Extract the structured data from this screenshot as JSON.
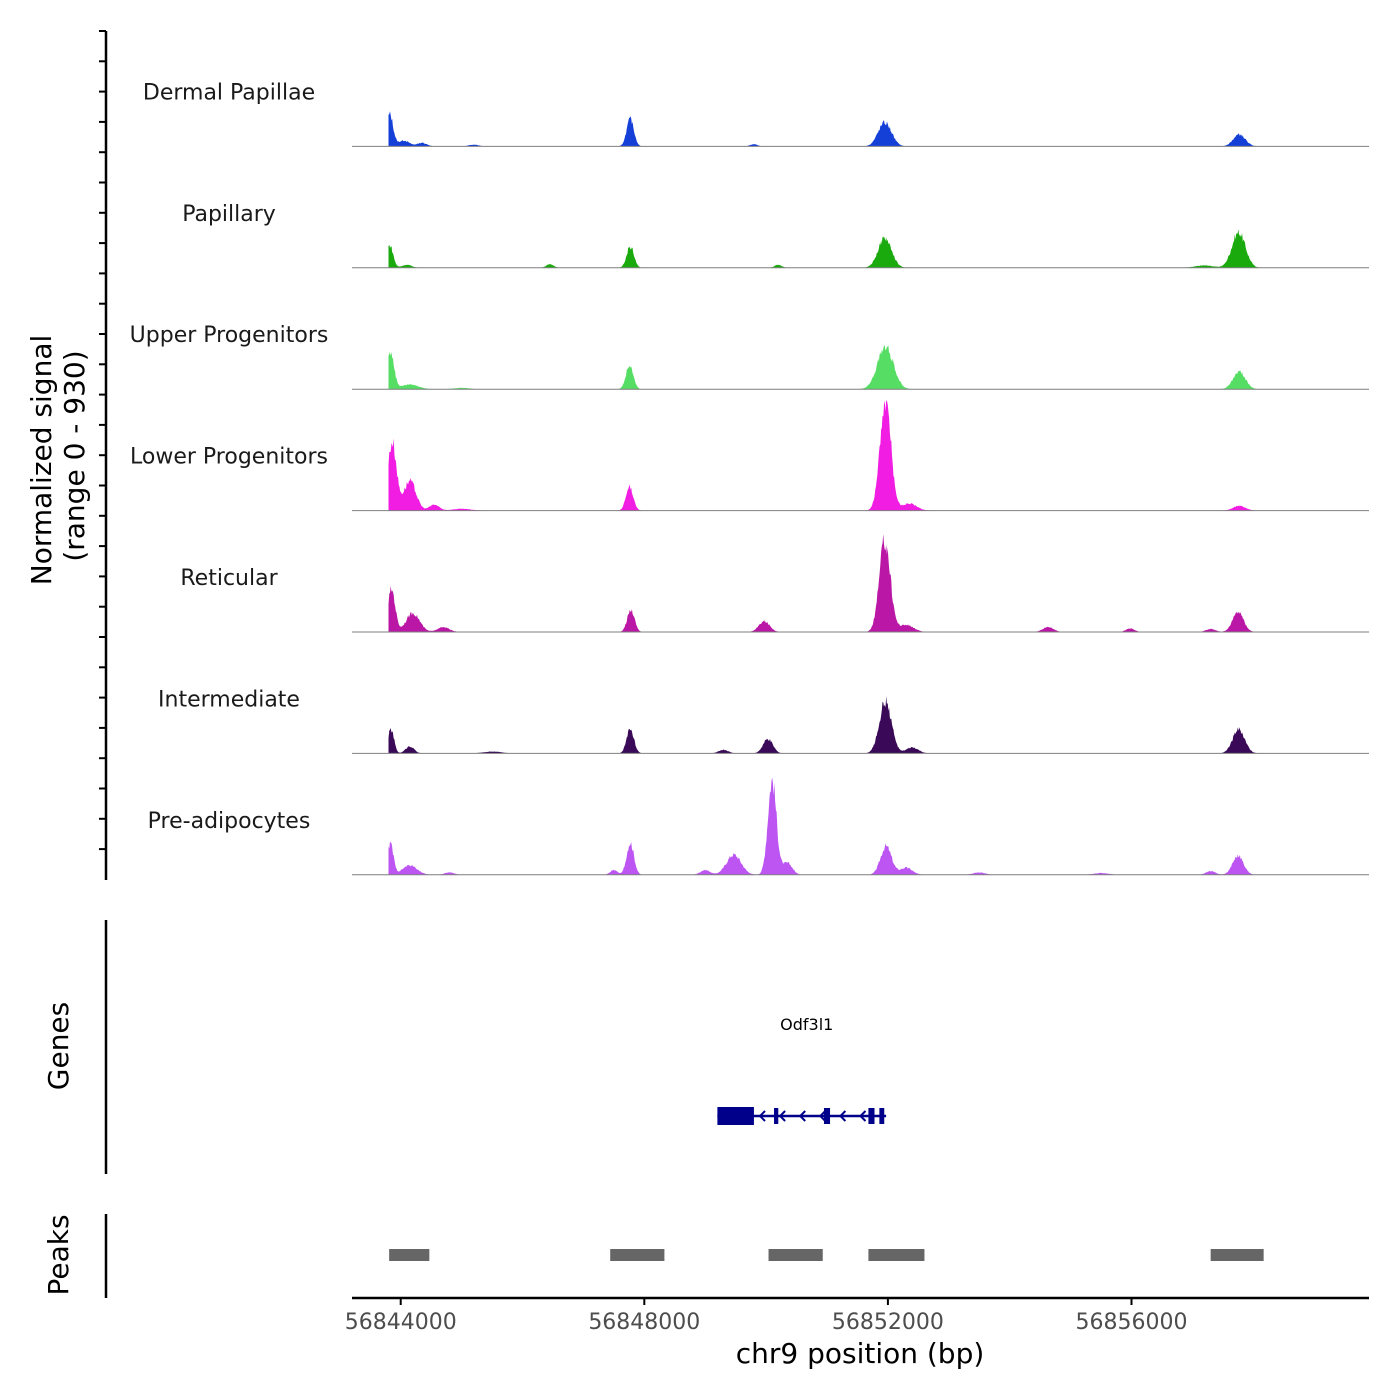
{
  "chart_data": {
    "type": "area",
    "subtype": "genome-coverage-tracks",
    "chromosome": "chr9",
    "xlim": [
      56843200,
      56859900
    ],
    "xticks": [
      56844000,
      56848000,
      56852000,
      56856000
    ],
    "xtick_labels": [
      "56844000",
      "56848000",
      "56852000",
      "56856000"
    ],
    "xlabel": "chr9 position (bp)",
    "ylabel_line1": "Normalized signal",
    "ylabel_line2": "(range 0 - 930)",
    "yrange": [
      0,
      930
    ],
    "genes_label": "Genes",
    "peaks_label": "Peaks",
    "series": [
      {
        "name": "Dermal Papillae",
        "color": "#1540d8",
        "peaks": [
          [
            56843820,
            270,
            55
          ],
          [
            56844050,
            50,
            90
          ],
          [
            56844350,
            30,
            80
          ],
          [
            56847770,
            230,
            60
          ],
          [
            56851950,
            200,
            110
          ],
          [
            56857770,
            100,
            100
          ],
          [
            56849800,
            18,
            60
          ],
          [
            56845200,
            15,
            80
          ]
        ]
      },
      {
        "name": "Papillary",
        "color": "#1aaa0e",
        "peaks": [
          [
            56843820,
            190,
            55
          ],
          [
            56844100,
            25,
            80
          ],
          [
            56846450,
            30,
            60
          ],
          [
            56847770,
            180,
            60
          ],
          [
            56850200,
            25,
            60
          ],
          [
            56851950,
            250,
            110
          ],
          [
            56857760,
            300,
            110
          ],
          [
            56857200,
            20,
            150
          ]
        ]
      },
      {
        "name": "Upper Progenitors",
        "color": "#56dd63",
        "peaks": [
          [
            56843830,
            310,
            60
          ],
          [
            56844150,
            40,
            140
          ],
          [
            56847760,
            210,
            60
          ],
          [
            56851960,
            360,
            130
          ],
          [
            56857770,
            150,
            100
          ],
          [
            56845000,
            12,
            120
          ]
        ]
      },
      {
        "name": "Lower Progenitors",
        "color": "#f11de3",
        "peaks": [
          [
            56843860,
            580,
            70
          ],
          [
            56844150,
            250,
            100
          ],
          [
            56844550,
            50,
            80
          ],
          [
            56847760,
            200,
            60
          ],
          [
            56851960,
            930,
            90
          ],
          [
            56852350,
            60,
            120
          ],
          [
            56857770,
            40,
            100
          ],
          [
            56845000,
            15,
            150
          ]
        ]
      },
      {
        "name": "Reticular",
        "color": "#ba17a6",
        "peaks": [
          [
            56843850,
            360,
            60
          ],
          [
            56844200,
            160,
            110
          ],
          [
            56844700,
            40,
            100
          ],
          [
            56847780,
            190,
            60
          ],
          [
            56849970,
            90,
            90
          ],
          [
            56851950,
            780,
            90
          ],
          [
            56852300,
            60,
            120
          ],
          [
            56854630,
            40,
            90
          ],
          [
            56855980,
            30,
            70
          ],
          [
            56857750,
            170,
            90
          ],
          [
            56857300,
            25,
            80
          ]
        ]
      },
      {
        "name": "Intermediate",
        "color": "#3a0a58",
        "peaks": [
          [
            56843840,
            200,
            50
          ],
          [
            56844150,
            60,
            70
          ],
          [
            56847770,
            210,
            60
          ],
          [
            56850030,
            120,
            80
          ],
          [
            56849300,
            30,
            80
          ],
          [
            56851960,
            440,
            100
          ],
          [
            56852400,
            50,
            100
          ],
          [
            56857760,
            200,
            100
          ],
          [
            56845500,
            15,
            150
          ]
        ]
      },
      {
        "name": "Pre-adipocytes",
        "color": "#bc55f2",
        "peaks": [
          [
            56843830,
            260,
            50
          ],
          [
            56844150,
            80,
            120
          ],
          [
            56844800,
            20,
            80
          ],
          [
            56847770,
            270,
            60
          ],
          [
            56847500,
            40,
            60
          ],
          [
            56849470,
            170,
            120
          ],
          [
            56850100,
            800,
            70
          ],
          [
            56850350,
            100,
            80
          ],
          [
            56851970,
            240,
            90
          ],
          [
            56852300,
            60,
            100
          ],
          [
            56849000,
            40,
            80
          ],
          [
            56853500,
            20,
            100
          ],
          [
            56857750,
            160,
            90
          ],
          [
            56857300,
            30,
            80
          ],
          [
            56855500,
            15,
            120
          ]
        ]
      }
    ],
    "gene": {
      "name": "Odf3l1",
      "strand": "-",
      "start": 56849200,
      "end": 56851970,
      "exons": [
        [
          56849200,
          56849800
        ],
        [
          56850130,
          56850200
        ],
        [
          56850950,
          56851050
        ],
        [
          56851680,
          56851780
        ],
        [
          56851860,
          56851940
        ]
      ]
    },
    "peak_regions": [
      [
        56843810,
        56844470
      ],
      [
        56847440,
        56848330
      ],
      [
        56850040,
        56850930
      ],
      [
        56851680,
        56852600
      ],
      [
        56857300,
        56858170
      ]
    ]
  }
}
